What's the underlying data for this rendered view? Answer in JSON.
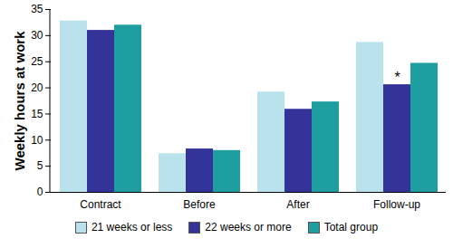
{
  "chart_data": {
    "type": "bar",
    "y_label": "Weekly hours at work",
    "categories": [
      "Contract",
      "Before",
      "After",
      "Follow-up"
    ],
    "series": [
      {
        "name": "21 weeks or less",
        "color": "#b9e2ec",
        "values": [
          32.8,
          7.4,
          19.2,
          28.7
        ]
      },
      {
        "name": "22 weeks or more",
        "color": "#333399",
        "values": [
          31.0,
          8.3,
          15.9,
          20.6
        ]
      },
      {
        "name": "Total group",
        "color": "#1e9e9e",
        "values": [
          32.0,
          8.0,
          17.3,
          24.7
        ]
      }
    ],
    "annotations": [
      {
        "text": "*",
        "category": "Follow-up",
        "series": "22 weeks or more"
      }
    ],
    "ylim": [
      0,
      35
    ],
    "yticks": [
      0,
      5,
      10,
      15,
      20,
      25,
      30,
      35
    ],
    "grid": false,
    "legend": "bottom"
  }
}
